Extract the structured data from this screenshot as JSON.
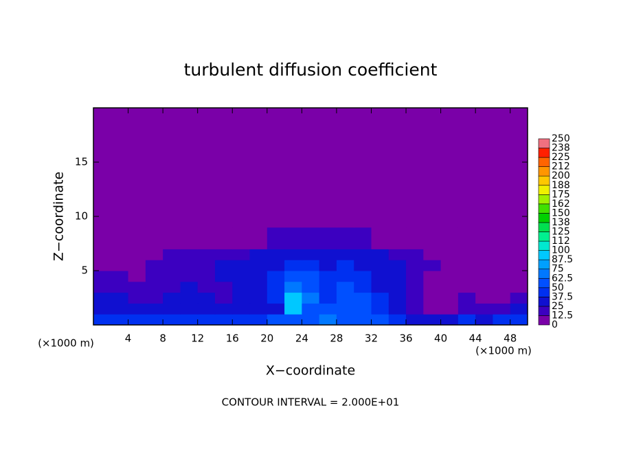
{
  "chart_data": {
    "type": "heatmap",
    "title": "turbulent diffusion coefficient",
    "xlabel": "X−coordinate",
    "ylabel": "Z−coordinate",
    "x_unit_labels": [
      "(×1000 m)",
      "(×1000 m)"
    ],
    "footnote": "CONTOUR INTERVAL = 2.000E+01",
    "xlim": [
      0,
      50
    ],
    "ylim": [
      0,
      20
    ],
    "xticks": [
      4,
      8,
      12,
      16,
      20,
      24,
      28,
      32,
      36,
      40,
      44,
      48
    ],
    "yticks": [
      5,
      10,
      15
    ],
    "field": {
      "x": [
        0,
        2,
        4,
        6,
        8,
        10,
        12,
        14,
        16,
        18,
        20,
        22,
        24,
        26,
        28,
        30,
        32,
        34,
        36,
        38,
        40,
        42,
        44,
        46,
        48,
        50
      ],
      "z": [
        0,
        1,
        2,
        3,
        4,
        5,
        6,
        7,
        9,
        20
      ],
      "values": [
        [
          45,
          45,
          45,
          45,
          45,
          40,
          40,
          40,
          45,
          45,
          50,
          60,
          60,
          70,
          55,
          60,
          50,
          40,
          30,
          30,
          35,
          40,
          35,
          40,
          45
        ],
        [
          30,
          25,
          30,
          25,
          25,
          30,
          30,
          25,
          25,
          30,
          30,
          90,
          60,
          50,
          50,
          50,
          40,
          25,
          20,
          10,
          10,
          20,
          15,
          20,
          25
        ],
        [
          25,
          30,
          20,
          20,
          25,
          25,
          25,
          20,
          25,
          35,
          40,
          90,
          70,
          45,
          50,
          50,
          40,
          25,
          15,
          5,
          10,
          15,
          10,
          10,
          20
        ],
        [
          20,
          20,
          20,
          15,
          20,
          25,
          20,
          20,
          25,
          35,
          45,
          70,
          60,
          40,
          50,
          45,
          35,
          25,
          15,
          5,
          5,
          10,
          10,
          5,
          10
        ],
        [
          15,
          15,
          10,
          15,
          20,
          20,
          20,
          25,
          25,
          30,
          40,
          55,
          50,
          40,
          45,
          40,
          30,
          25,
          20,
          10,
          10,
          10,
          5,
          5,
          5
        ],
        [
          5,
          10,
          10,
          15,
          20,
          20,
          20,
          25,
          25,
          30,
          35,
          40,
          45,
          35,
          40,
          35,
          30,
          25,
          20,
          15,
          10,
          5,
          5,
          5,
          5
        ],
        [
          0,
          0,
          5,
          10,
          15,
          20,
          20,
          20,
          20,
          25,
          30,
          35,
          30,
          30,
          30,
          25,
          25,
          20,
          15,
          10,
          5,
          0,
          0,
          0,
          0
        ],
        [
          0,
          0,
          0,
          0,
          0,
          0,
          5,
          5,
          10,
          10,
          15,
          15,
          20,
          20,
          15,
          15,
          10,
          5,
          0,
          0,
          0,
          0,
          0,
          0,
          0
        ],
        [
          0,
          0,
          0,
          0,
          0,
          0,
          0,
          0,
          0,
          0,
          0,
          0,
          0,
          0,
          0,
          0,
          0,
          0,
          0,
          0,
          0,
          0,
          0,
          0,
          0
        ]
      ]
    },
    "colorbar": {
      "levels": [
        0,
        12.5,
        25,
        37.5,
        50,
        62.5,
        75,
        87.5,
        100,
        {
          "value": 112.5,
          "label": "112"
        },
        125,
        {
          "value": 137.5,
          "label": "138"
        },
        150,
        {
          "value": 162.5,
          "label": "162"
        },
        175,
        {
          "value": 187.5,
          "label": "188"
        },
        200,
        {
          "value": 212.5,
          "label": "212"
        },
        225,
        {
          "value": 237.5,
          "label": "238"
        },
        250
      ],
      "colors": [
        "#7a00a8",
        "#3c00c0",
        "#1010d0",
        "#0030f0",
        "#0050ff",
        "#0078ff",
        "#00a0ff",
        "#00c8ff",
        "#00e8d0",
        "#00f090",
        "#00e050",
        "#00d000",
        "#40e000",
        "#a0f000",
        "#f0f000",
        "#ffc800",
        "#ff9600",
        "#ff6400",
        "#ff2000",
        "#f07080"
      ]
    }
  }
}
